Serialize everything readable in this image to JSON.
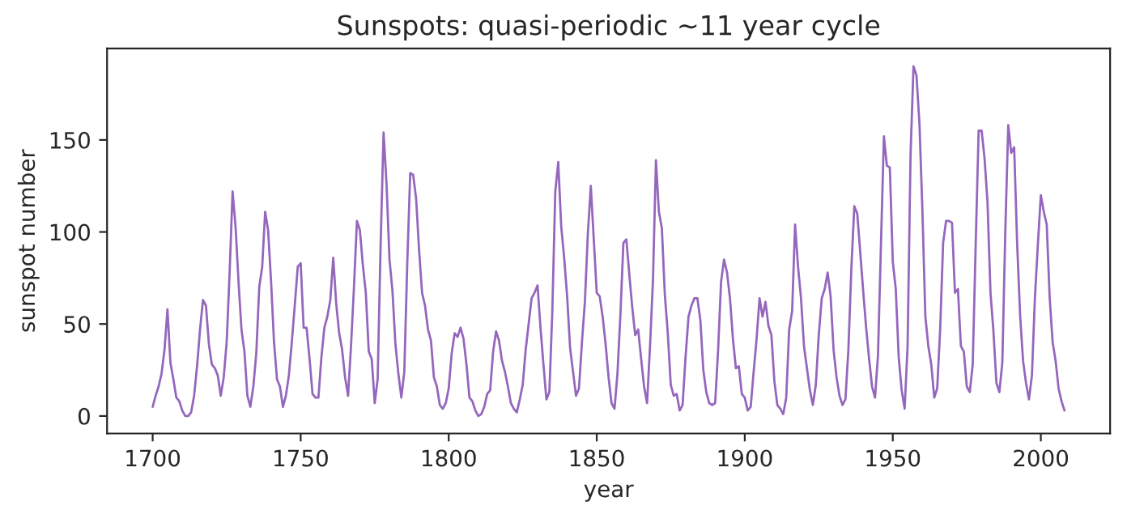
{
  "chart_data": {
    "type": "line",
    "title": "Sunspots: quasi-periodic ~11 year cycle",
    "xlabel": "year",
    "ylabel": "sunspot number",
    "xlim": [
      1684.6,
      2023.4
    ],
    "xticks": [
      1700,
      1750,
      1800,
      1850,
      1900,
      1950,
      2000
    ],
    "ylim": [
      -9.5,
      199.7
    ],
    "yticks": [
      0,
      50,
      100,
      150
    ],
    "grid": false,
    "legend": false,
    "marker": "none",
    "line_style": "solid",
    "x": [
      1700,
      1701,
      1702,
      1703,
      1704,
      1705,
      1706,
      1707,
      1708,
      1709,
      1710,
      1711,
      1712,
      1713,
      1714,
      1715,
      1716,
      1717,
      1718,
      1719,
      1720,
      1721,
      1722,
      1723,
      1724,
      1725,
      1726,
      1727,
      1728,
      1729,
      1730,
      1731,
      1732,
      1733,
      1734,
      1735,
      1736,
      1737,
      1738,
      1739,
      1740,
      1741,
      1742,
      1743,
      1744,
      1745,
      1746,
      1747,
      1748,
      1749,
      1750,
      1751,
      1752,
      1753,
      1754,
      1755,
      1756,
      1757,
      1758,
      1759,
      1760,
      1761,
      1762,
      1763,
      1764,
      1765,
      1766,
      1767,
      1768,
      1769,
      1770,
      1771,
      1772,
      1773,
      1774,
      1775,
      1776,
      1777,
      1778,
      1779,
      1780,
      1781,
      1782,
      1783,
      1784,
      1785,
      1786,
      1787,
      1788,
      1789,
      1790,
      1791,
      1792,
      1793,
      1794,
      1795,
      1796,
      1797,
      1798,
      1799,
      1800,
      1801,
      1802,
      1803,
      1804,
      1805,
      1806,
      1807,
      1808,
      1809,
      1810,
      1811,
      1812,
      1813,
      1814,
      1815,
      1816,
      1817,
      1818,
      1819,
      1820,
      1821,
      1822,
      1823,
      1824,
      1825,
      1826,
      1827,
      1828,
      1829,
      1830,
      1831,
      1832,
      1833,
      1834,
      1835,
      1836,
      1837,
      1838,
      1839,
      1840,
      1841,
      1842,
      1843,
      1844,
      1845,
      1846,
      1847,
      1848,
      1849,
      1850,
      1851,
      1852,
      1853,
      1854,
      1855,
      1856,
      1857,
      1858,
      1859,
      1860,
      1861,
      1862,
      1863,
      1864,
      1865,
      1866,
      1867,
      1868,
      1869,
      1870,
      1871,
      1872,
      1873,
      1874,
      1875,
      1876,
      1877,
      1878,
      1879,
      1880,
      1881,
      1882,
      1883,
      1884,
      1885,
      1886,
      1887,
      1888,
      1889,
      1890,
      1891,
      1892,
      1893,
      1894,
      1895,
      1896,
      1897,
      1898,
      1899,
      1900,
      1901,
      1902,
      1903,
      1904,
      1905,
      1906,
      1907,
      1908,
      1909,
      1910,
      1911,
      1912,
      1913,
      1914,
      1915,
      1916,
      1917,
      1918,
      1919,
      1920,
      1921,
      1922,
      1923,
      1924,
      1925,
      1926,
      1927,
      1928,
      1929,
      1930,
      1931,
      1932,
      1933,
      1934,
      1935,
      1936,
      1937,
      1938,
      1939,
      1940,
      1941,
      1942,
      1943,
      1944,
      1945,
      1946,
      1947,
      1948,
      1949,
      1950,
      1951,
      1952,
      1953,
      1954,
      1955,
      1956,
      1957,
      1958,
      1959,
      1960,
      1961,
      1962,
      1963,
      1964,
      1965,
      1966,
      1967,
      1968,
      1969,
      1970,
      1971,
      1972,
      1973,
      1974,
      1975,
      1976,
      1977,
      1978,
      1979,
      1980,
      1981,
      1982,
      1983,
      1984,
      1985,
      1986,
      1987,
      1988,
      1989,
      1990,
      1991,
      1992,
      1993,
      1994,
      1995,
      1996,
      1997,
      1998,
      1999,
      2000,
      2001,
      2002,
      2003,
      2004,
      2005,
      2006,
      2007,
      2008
    ],
    "series": [
      {
        "color": "#9467bd",
        "values": [
          5,
          11,
          16,
          23,
          36,
          58,
          29,
          20,
          10,
          8,
          3,
          0,
          0,
          2,
          11,
          27,
          47,
          63,
          60,
          39,
          28,
          26,
          22,
          11,
          21,
          40,
          78,
          122,
          103,
          73,
          47,
          35,
          11,
          5,
          16,
          34,
          70,
          81,
          111,
          101,
          73,
          40,
          20,
          16,
          5,
          11,
          22,
          40,
          60,
          81,
          83,
          48,
          48,
          31,
          12,
          10,
          10,
          32,
          48,
          54,
          63,
          86,
          61,
          45,
          36,
          21,
          11,
          38,
          70,
          106,
          101,
          82,
          67,
          35,
          31,
          7,
          20,
          93,
          154,
          126,
          85,
          68,
          39,
          23,
          10,
          24,
          83,
          132,
          131,
          118,
          90,
          67,
          60,
          47,
          41,
          21,
          16,
          6,
          4,
          7,
          15,
          34,
          45,
          43,
          48,
          42,
          28,
          10,
          8,
          3,
          0,
          1,
          5,
          12,
          14,
          35,
          46,
          41,
          30,
          24,
          16,
          7,
          4,
          2,
          9,
          17,
          36,
          50,
          64,
          67,
          71,
          48,
          28,
          9,
          13,
          57,
          122,
          138,
          103,
          86,
          65,
          37,
          24,
          11,
          15,
          40,
          62,
          99,
          125,
          96,
          67,
          65,
          54,
          39,
          21,
          7,
          4,
          23,
          55,
          94,
          96,
          77,
          59,
          44,
          47,
          31,
          16,
          7,
          38,
          74,
          139,
          111,
          102,
          66,
          45,
          17,
          11,
          12,
          3,
          6,
          32,
          54,
          60,
          64,
          64,
          52,
          25,
          13,
          7,
          6,
          7,
          36,
          73,
          85,
          78,
          64,
          42,
          26,
          27,
          12,
          10,
          3,
          5,
          24,
          42,
          64,
          54,
          62,
          49,
          44,
          19,
          6,
          4,
          1,
          10,
          47,
          57,
          104,
          81,
          64,
          38,
          26,
          14,
          6,
          17,
          44,
          64,
          69,
          78,
          65,
          36,
          21,
          11,
          6,
          9,
          36,
          80,
          114,
          110,
          89,
          68,
          48,
          31,
          16,
          10,
          33,
          93,
          152,
          136,
          135,
          84,
          69,
          32,
          14,
          4,
          38,
          142,
          190,
          185,
          159,
          112,
          54,
          38,
          28,
          10,
          15,
          47,
          94,
          106,
          106,
          105,
          67,
          69,
          38,
          35,
          16,
          13,
          28,
          93,
          155,
          155,
          140,
          116,
          67,
          46,
          18,
          13,
          29,
          100,
          158,
          143,
          146,
          94,
          55,
          30,
          18,
          9,
          22,
          64,
          93,
          120,
          111,
          104,
          64,
          40,
          30,
          15,
          8,
          3
        ]
      }
    ]
  }
}
